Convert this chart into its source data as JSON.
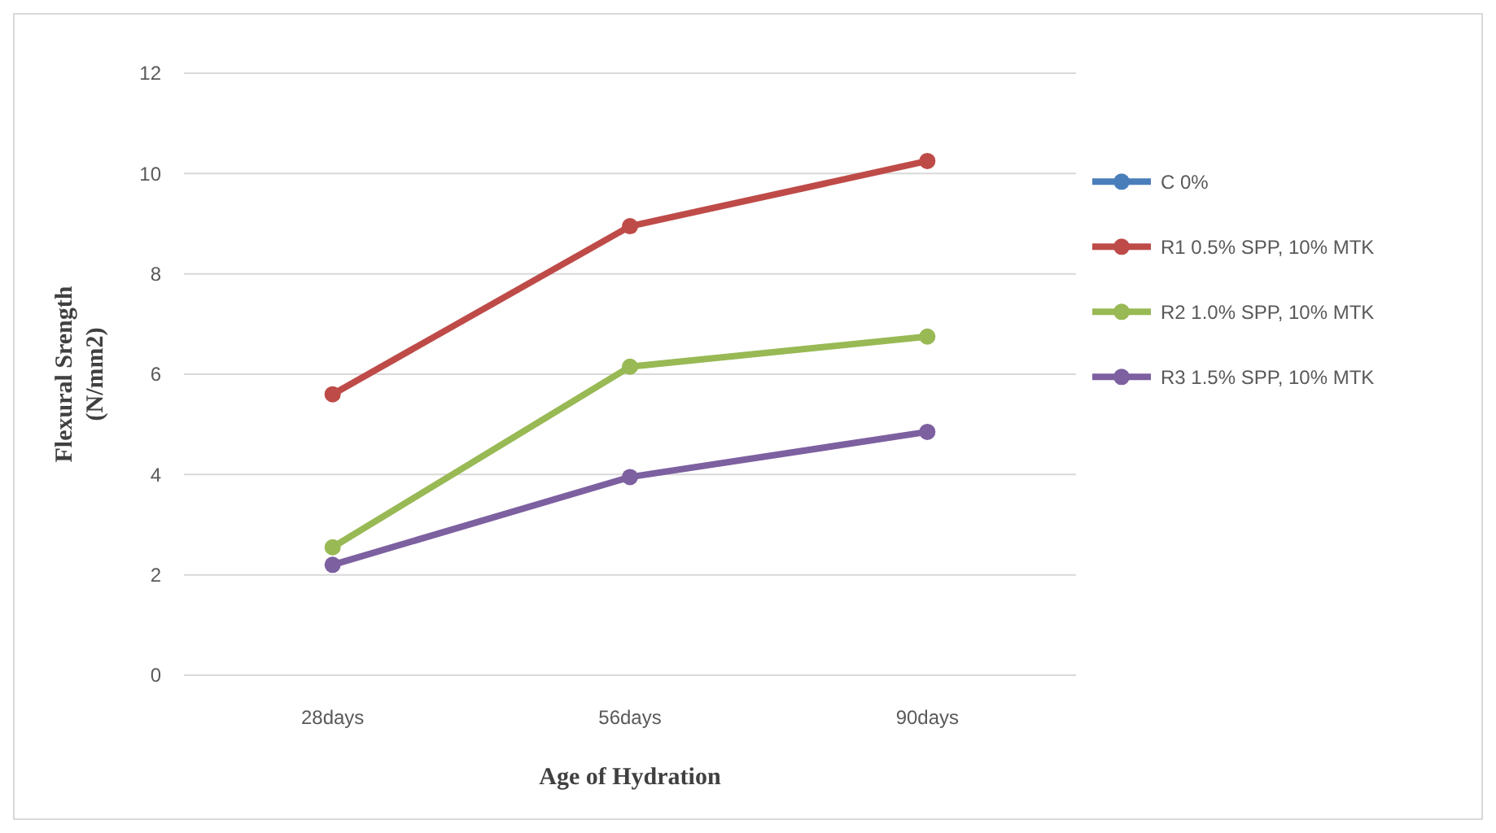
{
  "chart_data": {
    "type": "line",
    "xlabel": "Age of Hydration",
    "ylabel": "Flexural Srength (N/mm2)",
    "categories": [
      "28days",
      "56days",
      "90days"
    ],
    "series": [
      {
        "name": "C 0%",
        "color": "#4a7ebb",
        "values": [
          null,
          null,
          null
        ]
      },
      {
        "name": "R1 0.5% SPP, 10% MTK",
        "color": "#be4b48",
        "values": [
          5.6,
          8.95,
          10.25
        ]
      },
      {
        "name": "R2 1.0% SPP, 10% MTK",
        "color": "#98b954",
        "values": [
          2.55,
          6.15,
          6.75
        ]
      },
      {
        "name": "R3 1.5% SPP, 10% MTK",
        "color": "#7d60a0",
        "values": [
          2.2,
          3.95,
          4.85
        ]
      }
    ],
    "ylim": [
      0,
      12
    ],
    "yticks": [
      0,
      2,
      4,
      6,
      8,
      10,
      12
    ],
    "grid": "y",
    "legend": "right",
    "marker": "circle",
    "line_style": "solid"
  }
}
